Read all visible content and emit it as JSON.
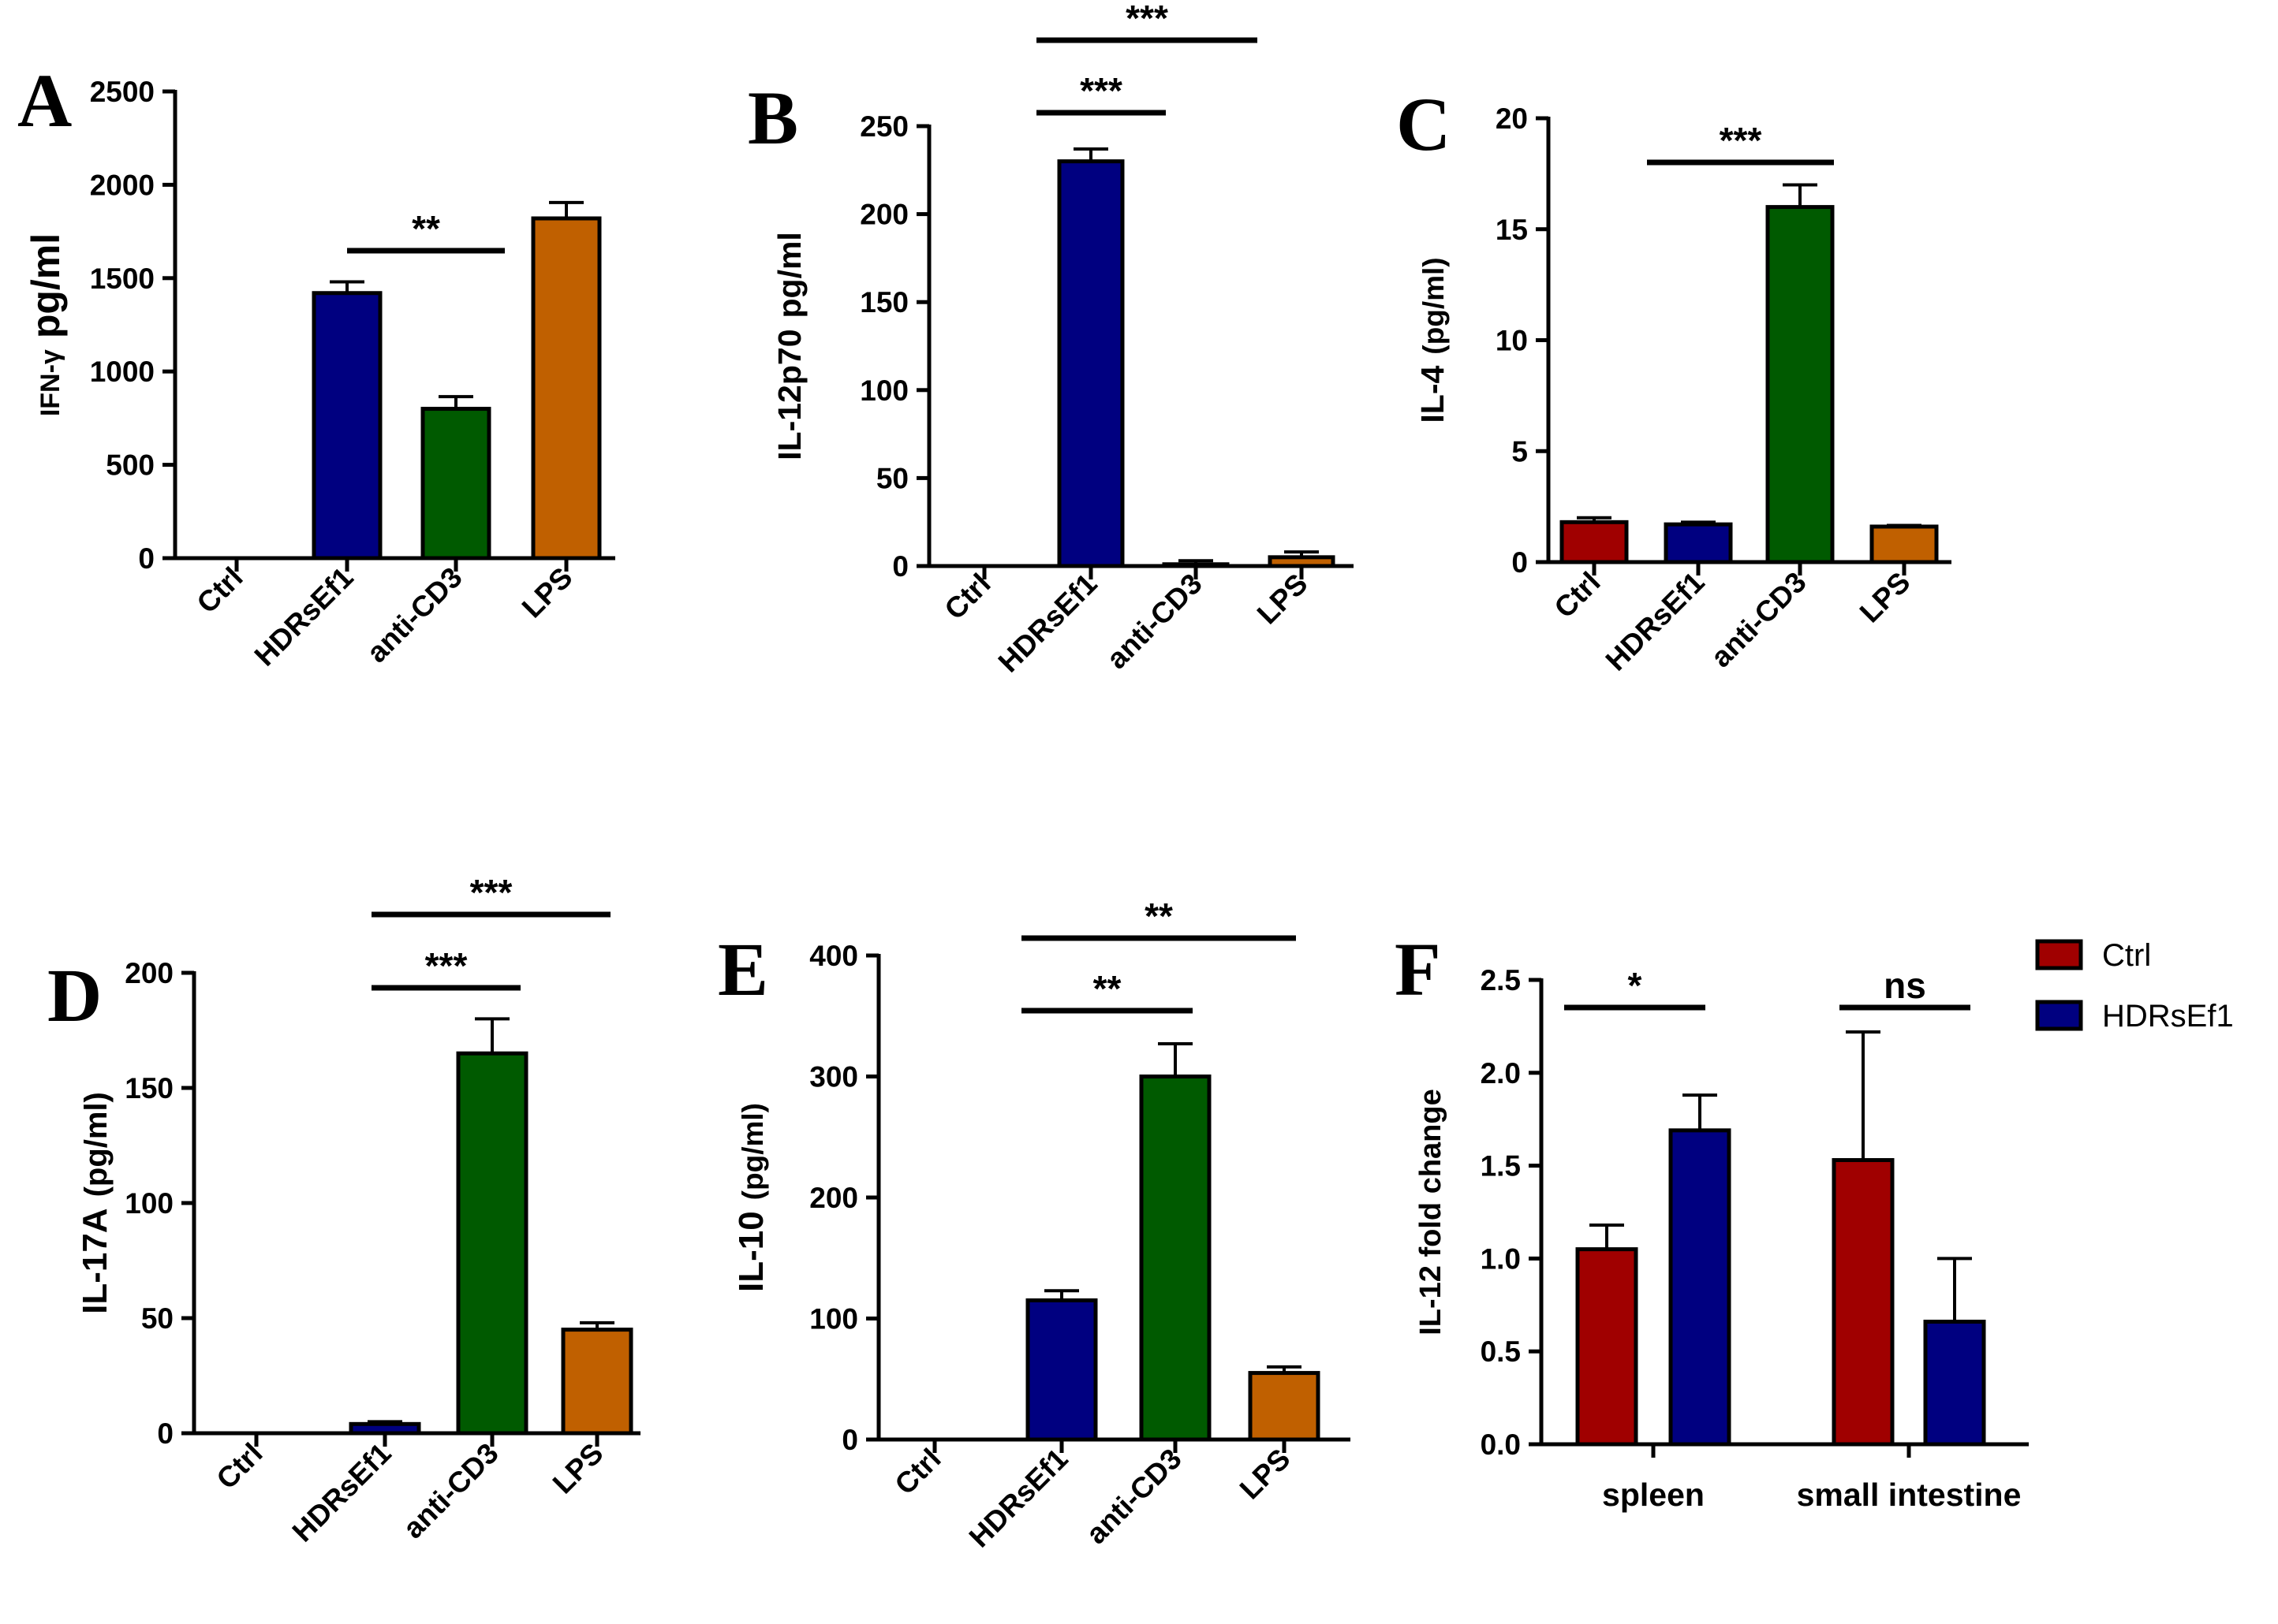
{
  "colors": {
    "Ctrl": "#a00000",
    "HDRsEf1": "#000080",
    "anti-CD3": "#005a00",
    "LPS": "#c06000"
  },
  "chart_data": [
    {
      "panel": "A",
      "type": "bar",
      "ylabel_main": "IFN-γ",
      "ylabel_unit": "pg/ml",
      "categories": [
        "Ctrl",
        "HDRsEf1",
        "anti-CD3",
        "LPS"
      ],
      "values": [
        0,
        1420,
        800,
        1820
      ],
      "errors": [
        0,
        60,
        65,
        85
      ],
      "ylim": [
        0,
        2500
      ],
      "ticks": [
        0,
        500,
        1000,
        1500,
        2000,
        2500
      ],
      "tick_labels": [
        "0",
        "500",
        "1000",
        "1500",
        "2000",
        "2500"
      ],
      "significance": [
        {
          "from": "HDRsEf1",
          "to": "anti-CD3",
          "label": "**"
        }
      ]
    },
    {
      "panel": "B",
      "type": "bar",
      "ylabel_main": "IL-12p70",
      "ylabel_unit": "pg/ml",
      "categories": [
        "Ctrl",
        "HDRsEf1",
        "anti-CD3",
        "LPS"
      ],
      "values": [
        0,
        230,
        1,
        5
      ],
      "errors": [
        0,
        7,
        2,
        3
      ],
      "ylim": [
        0,
        250
      ],
      "ticks": [
        0,
        50,
        100,
        150,
        200,
        250
      ],
      "tick_labels": [
        "0",
        "50",
        "100",
        "150",
        "200",
        "250"
      ],
      "significance": [
        {
          "from": "HDRsEf1",
          "to": "anti-CD3",
          "label": "***"
        },
        {
          "from": "HDRsEf1",
          "to": "LPS",
          "label": "***"
        }
      ]
    },
    {
      "panel": "C",
      "type": "bar",
      "ylabel_main": "IL-4",
      "ylabel_unit": "(pg/ml)",
      "categories": [
        "Ctrl",
        "HDRsEf1",
        "anti-CD3",
        "LPS"
      ],
      "values": [
        1.8,
        1.7,
        16.0,
        1.6
      ],
      "errors": [
        0.2,
        0.1,
        1.0,
        0.05
      ],
      "ylim": [
        0,
        20
      ],
      "ticks": [
        0,
        5,
        10,
        15,
        20
      ],
      "tick_labels": [
        "0",
        "5",
        "10",
        "15",
        "20"
      ],
      "significance": [
        {
          "from": "HDRsEf1",
          "to": "anti-CD3",
          "label": "***"
        }
      ]
    },
    {
      "panel": "D",
      "type": "bar",
      "ylabel_main": "IL-17A",
      "ylabel_unit": "(pg/ml)",
      "categories": [
        "Ctrl",
        "HDRsEf1",
        "anti-CD3",
        "LPS"
      ],
      "values": [
        0,
        4,
        165,
        45
      ],
      "errors": [
        0,
        1,
        15,
        3
      ],
      "ylim": [
        0,
        200
      ],
      "ticks": [
        0,
        50,
        100,
        150,
        200
      ],
      "tick_labels": [
        "0",
        "50",
        "100",
        "150",
        "200"
      ],
      "significance": [
        {
          "from": "HDRsEf1",
          "to": "anti-CD3",
          "label": "***"
        },
        {
          "from": "HDRsEf1",
          "to": "LPS",
          "label": "***"
        }
      ]
    },
    {
      "panel": "E",
      "type": "bar",
      "ylabel_main": "IL-10",
      "ylabel_unit": "(pg/ml)",
      "categories": [
        "Ctrl",
        "HDRsEf1",
        "anti-CD3",
        "LPS"
      ],
      "values": [
        0,
        115,
        300,
        55
      ],
      "errors": [
        0,
        8,
        27,
        5
      ],
      "ylim": [
        0,
        400
      ],
      "ticks": [
        0,
        100,
        200,
        300,
        400
      ],
      "tick_labels": [
        "0",
        "100",
        "200",
        "300",
        "400"
      ],
      "significance": [
        {
          "from": "HDRsEf1",
          "to": "anti-CD3",
          "label": "**"
        },
        {
          "from": "HDRsEf1",
          "to": "LPS",
          "label": "**"
        }
      ]
    },
    {
      "panel": "F",
      "type": "grouped-bar",
      "ylabel_main": "IL-12 fold change",
      "ylabel_unit": "",
      "categories": [
        "spleen",
        "small intestine"
      ],
      "series": [
        {
          "name": "Ctrl",
          "values": [
            1.05,
            1.53
          ],
          "errors": [
            0.13,
            0.69
          ]
        },
        {
          "name": "HDRsEf1",
          "values": [
            1.69,
            0.66
          ],
          "errors": [
            0.19,
            0.34
          ]
        }
      ],
      "ylim": [
        0,
        2.5
      ],
      "ticks": [
        0,
        0.5,
        1.0,
        1.5,
        2.0,
        2.5
      ],
      "tick_labels": [
        "0.0",
        "0.5",
        "1.0",
        "1.5",
        "2.0",
        "2.5"
      ],
      "legend": [
        "Ctrl",
        "HDRsEf1"
      ],
      "significance": [
        {
          "group": "spleen",
          "label": "*"
        },
        {
          "group": "small intestine",
          "label": "ns"
        }
      ]
    }
  ]
}
